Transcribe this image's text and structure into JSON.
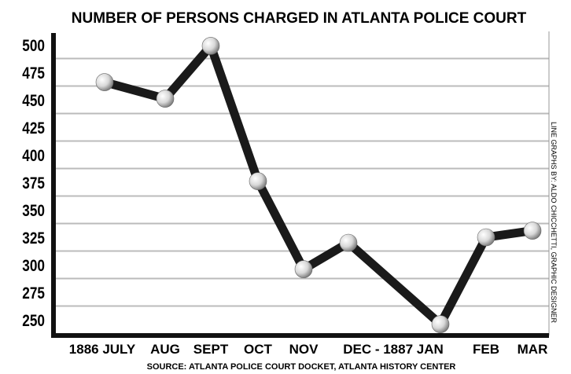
{
  "chart_data": {
    "type": "line",
    "title": "NUMBER OF PERSONS CHARGED IN ATLANTA POLICE COURT",
    "categories": [
      "1886 JULY",
      "AUG",
      "SEPT",
      "OCT",
      "NOV",
      "DEC - 1887 JAN",
      "FEB",
      "MAR"
    ],
    "x": [
      "JULY 1886",
      "AUG 1886",
      "SEPT 1886",
      "OCT 1886",
      "NOV 1886",
      "DEC 1886",
      "JAN 1887",
      "FEB 1887",
      "MAR 1887"
    ],
    "series": [
      {
        "values": [
          466,
          451,
          499,
          376,
          296,
          320,
          246,
          325,
          331
        ]
      }
    ],
    "yticks": [
      500,
      475,
      450,
      425,
      400,
      375,
      350,
      325,
      300,
      275,
      250
    ],
    "ylim": [
      235,
      510
    ],
    "grid": true,
    "xlabel": "",
    "ylabel": "",
    "source": "SOURCE: ATLANTA POLICE COURT DOCKET, ATLANTA HISTORY CENTER",
    "credit": "LINE GRAPHS BY: ALDO CHICCHETTI, GRAPHIC DESIGNER",
    "colors": {
      "line": "#1a1a1a",
      "grid": "#bbbbbb",
      "marker": "#e8e8e8"
    }
  }
}
